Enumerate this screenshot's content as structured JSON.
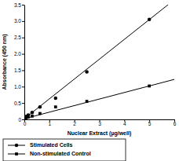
{
  "chart_data": {
    "type": "scatter",
    "x_label": "Nuclear Extract (µg/well)",
    "y_label": "Absorbance (450 nm)",
    "xlim": [
      0,
      6
    ],
    "xticks": [
      0,
      1,
      2,
      3,
      4,
      5,
      6
    ],
    "ylim": [
      0,
      3.5
    ],
    "yticks": [
      0,
      0.5,
      {
        "value": 1,
        "label": "1.0"
      },
      1.5,
      {
        "value": 2,
        "label": "2.0"
      },
      2.5,
      {
        "value": 3,
        "label": "3.0"
      },
      3.5
    ],
    "legend": "bottom",
    "series": [
      {
        "name": "Stimulated Cells",
        "color": "#000000",
        "marker": "circle",
        "line_style": "solid",
        "x": [
          0.039,
          0.078,
          0.156,
          0.3125,
          0.625,
          1.25,
          2.5,
          5
        ],
        "values": [
          0.06,
          0.09,
          0.13,
          0.21,
          0.38,
          0.65,
          1.45,
          3.05
        ],
        "fit": {
          "x": [
            0,
            5.75
          ],
          "values": [
            0.02,
            3.5
          ]
        }
      },
      {
        "name": "Non-stimulated Control",
        "color": "#000000",
        "marker": "square",
        "line_style": "solid",
        "x": [
          0.039,
          0.078,
          0.156,
          0.3125,
          0.625,
          1.25,
          2.5,
          5
        ],
        "values": [
          0.04,
          0.05,
          0.07,
          0.1,
          0.18,
          0.38,
          0.55,
          1.02
        ],
        "fit": {
          "x": [
            0,
            6
          ],
          "values": [
            0.02,
            1.22
          ]
        }
      }
    ]
  }
}
